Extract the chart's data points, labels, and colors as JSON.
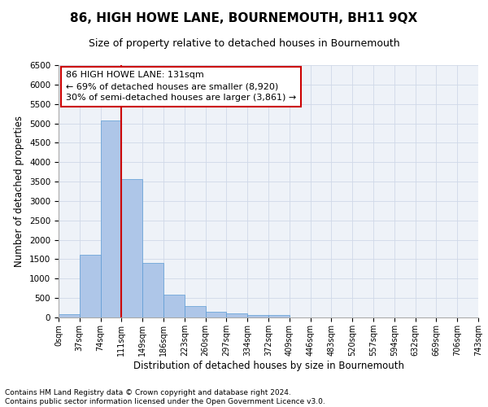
{
  "title": "86, HIGH HOWE LANE, BOURNEMOUTH, BH11 9QX",
  "subtitle": "Size of property relative to detached houses in Bournemouth",
  "xlabel": "Distribution of detached houses by size in Bournemouth",
  "ylabel": "Number of detached properties",
  "bar_values": [
    75,
    1620,
    5080,
    3570,
    1400,
    580,
    285,
    140,
    100,
    70,
    55,
    0,
    0,
    0,
    0,
    0,
    0,
    0,
    0,
    0
  ],
  "bin_labels": [
    "0sqm",
    "37sqm",
    "74sqm",
    "111sqm",
    "149sqm",
    "186sqm",
    "223sqm",
    "260sqm",
    "297sqm",
    "334sqm",
    "372sqm",
    "409sqm",
    "446sqm",
    "483sqm",
    "520sqm",
    "557sqm",
    "594sqm",
    "632sqm",
    "669sqm",
    "706sqm",
    "743sqm"
  ],
  "bar_color": "#aec6e8",
  "bar_edge_color": "#5b9bd5",
  "vline_color": "#cc0000",
  "annotation_text": "86 HIGH HOWE LANE: 131sqm\n← 69% of detached houses are smaller (8,920)\n30% of semi-detached houses are larger (3,861) →",
  "annotation_box_color": "#cc0000",
  "ylim": [
    0,
    6500
  ],
  "yticks": [
    0,
    500,
    1000,
    1500,
    2000,
    2500,
    3000,
    3500,
    4000,
    4500,
    5000,
    5500,
    6000,
    6500
  ],
  "grid_color": "#d0d8e8",
  "bg_color": "#eef2f8",
  "footnote": "Contains HM Land Registry data © Crown copyright and database right 2024.\nContains public sector information licensed under the Open Government Licence v3.0.",
  "title_fontsize": 11,
  "subtitle_fontsize": 9,
  "axis_label_fontsize": 8.5,
  "tick_fontsize": 7.5,
  "annotation_fontsize": 8,
  "footnote_fontsize": 6.5
}
